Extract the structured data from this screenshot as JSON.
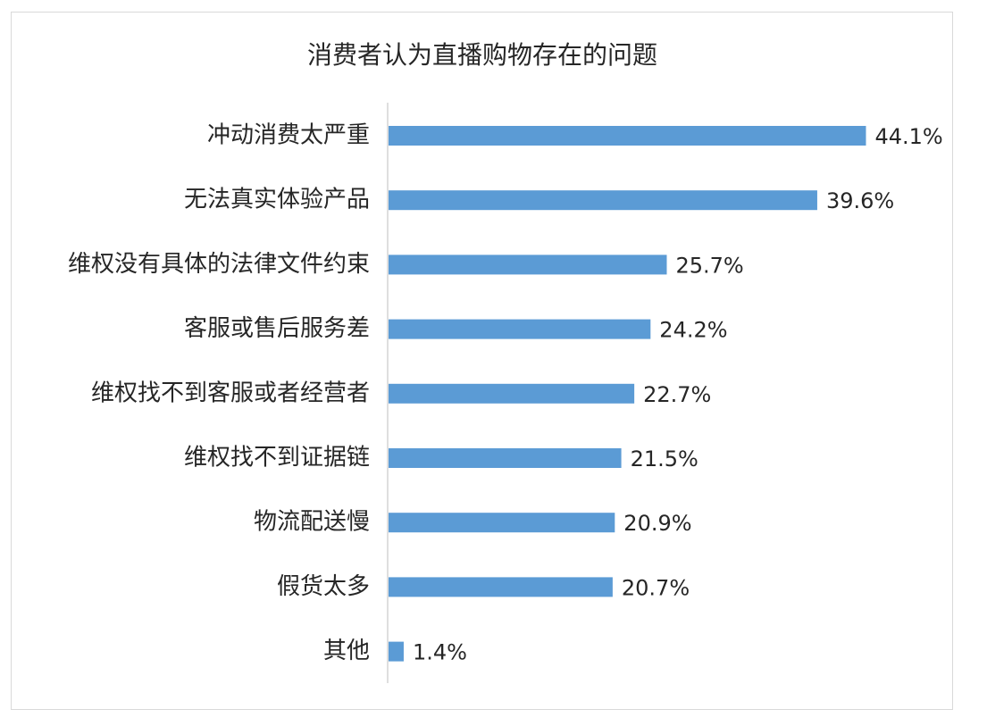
{
  "chart_data": {
    "type": "bar",
    "orientation": "horizontal",
    "title": "消费者认为直播购物存在的问题",
    "xlabel": "",
    "ylabel": "",
    "categories": [
      "冲动消费太严重",
      "无法真实体验产品",
      "维权没有具体的法律文件约束",
      "客服或售后服务差",
      "维权找不到客服或者经营者",
      "维权找不到证据链",
      "物流配送慢",
      "假货太多",
      "其他"
    ],
    "values": [
      44.1,
      39.6,
      25.7,
      24.2,
      22.7,
      21.5,
      20.9,
      20.7,
      1.4
    ],
    "data_labels": [
      "44.1%",
      "39.6%",
      "25.7%",
      "24.2%",
      "22.7%",
      "21.5%",
      "20.9%",
      "20.7%",
      "1.4%"
    ],
    "xlim": [
      0,
      50
    ],
    "grid": false,
    "legend": "none",
    "bar_color": "#5b9bd5"
  }
}
